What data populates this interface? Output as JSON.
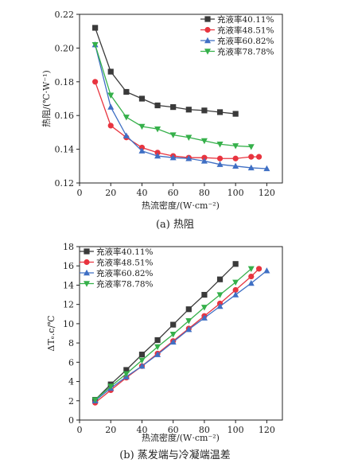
{
  "chart_data": [
    {
      "type": "line",
      "id": "a",
      "caption": "(a)  热阻",
      "xlabel": "热流密度/(W·cm⁻²)",
      "ylabel": "热阻/(℃·W⁻¹)",
      "xlim": [
        0,
        130
      ],
      "ylim": [
        0.12,
        0.22
      ],
      "xticks": [
        0,
        20,
        40,
        60,
        80,
        100,
        120
      ],
      "yticks": [
        "0.12",
        "0.14",
        "0.16",
        "0.18",
        "0.20",
        "0.22"
      ],
      "legend_position": "top-right",
      "series": [
        {
          "name": "充液率40.11%",
          "color": "#3a3a3a",
          "marker": "square",
          "x": [
            10,
            20,
            30,
            40,
            50,
            60,
            70,
            80,
            90,
            100
          ],
          "y": [
            0.212,
            0.186,
            0.174,
            0.17,
            0.166,
            0.165,
            0.1635,
            0.163,
            0.162,
            0.161
          ]
        },
        {
          "name": "充液率48.51%",
          "color": "#e8343f",
          "marker": "circle",
          "x": [
            10,
            20,
            30,
            40,
            50,
            60,
            70,
            80,
            90,
            100,
            110,
            115
          ],
          "y": [
            0.18,
            0.154,
            0.147,
            0.141,
            0.138,
            0.136,
            0.135,
            0.135,
            0.1345,
            0.1345,
            0.1355,
            0.1355
          ]
        },
        {
          "name": "充液率60.82%",
          "color": "#3f6fc4",
          "marker": "triangle-up",
          "x": [
            10,
            20,
            30,
            40,
            50,
            60,
            70,
            80,
            90,
            100,
            110,
            120
          ],
          "y": [
            0.202,
            0.165,
            0.148,
            0.139,
            0.136,
            0.135,
            0.1345,
            0.133,
            0.131,
            0.13,
            0.129,
            0.1285
          ]
        },
        {
          "name": "充液率78.78%",
          "color": "#35b04a",
          "marker": "triangle-down",
          "x": [
            10,
            20,
            30,
            40,
            50,
            60,
            70,
            80,
            90,
            100,
            110
          ],
          "y": [
            0.202,
            0.172,
            0.159,
            0.1535,
            0.152,
            0.1485,
            0.147,
            0.145,
            0.143,
            0.142,
            0.1415
          ]
        }
      ]
    },
    {
      "type": "line",
      "id": "b",
      "caption": "(b)  蒸发端与冷凝端温差",
      "xlabel": "热流密度/(W·cm⁻²)",
      "ylabel": "ΔTₑ.c/℃",
      "xlim": [
        0,
        130
      ],
      "ylim": [
        0,
        18
      ],
      "xticks": [
        0,
        20,
        40,
        60,
        80,
        100,
        120
      ],
      "yticks": [
        "0",
        "2",
        "4",
        "6",
        "8",
        "10",
        "12",
        "14",
        "16",
        "18"
      ],
      "legend_position": "top-left",
      "series": [
        {
          "name": "充液率40.11%",
          "color": "#3a3a3a",
          "marker": "square",
          "x": [
            10,
            20,
            30,
            40,
            50,
            60,
            70,
            80,
            90,
            100
          ],
          "y": [
            2.1,
            3.7,
            5.2,
            6.8,
            8.3,
            9.9,
            11.5,
            13.0,
            14.6,
            16.2
          ]
        },
        {
          "name": "充液率48.51%",
          "color": "#e8343f",
          "marker": "circle",
          "x": [
            10,
            20,
            30,
            40,
            50,
            60,
            70,
            80,
            90,
            100,
            110,
            115
          ],
          "y": [
            1.8,
            3.1,
            4.4,
            5.6,
            6.9,
            8.2,
            9.5,
            10.8,
            12.1,
            13.5,
            14.9,
            15.7
          ]
        },
        {
          "name": "充液率60.82%",
          "color": "#3f6fc4",
          "marker": "triangle-up",
          "x": [
            10,
            20,
            30,
            40,
            50,
            60,
            70,
            80,
            90,
            100,
            110,
            120
          ],
          "y": [
            2.0,
            3.3,
            4.5,
            5.6,
            6.8,
            8.1,
            9.4,
            10.6,
            11.8,
            13.0,
            14.2,
            15.5
          ]
        },
        {
          "name": "充液率78.78%",
          "color": "#35b04a",
          "marker": "triangle-down",
          "x": [
            10,
            20,
            30,
            40,
            50,
            60,
            70,
            80,
            90,
            100,
            110
          ],
          "y": [
            2.1,
            3.5,
            4.8,
            6.2,
            7.6,
            8.9,
            10.3,
            11.7,
            13.0,
            14.3,
            15.7
          ]
        }
      ]
    }
  ]
}
